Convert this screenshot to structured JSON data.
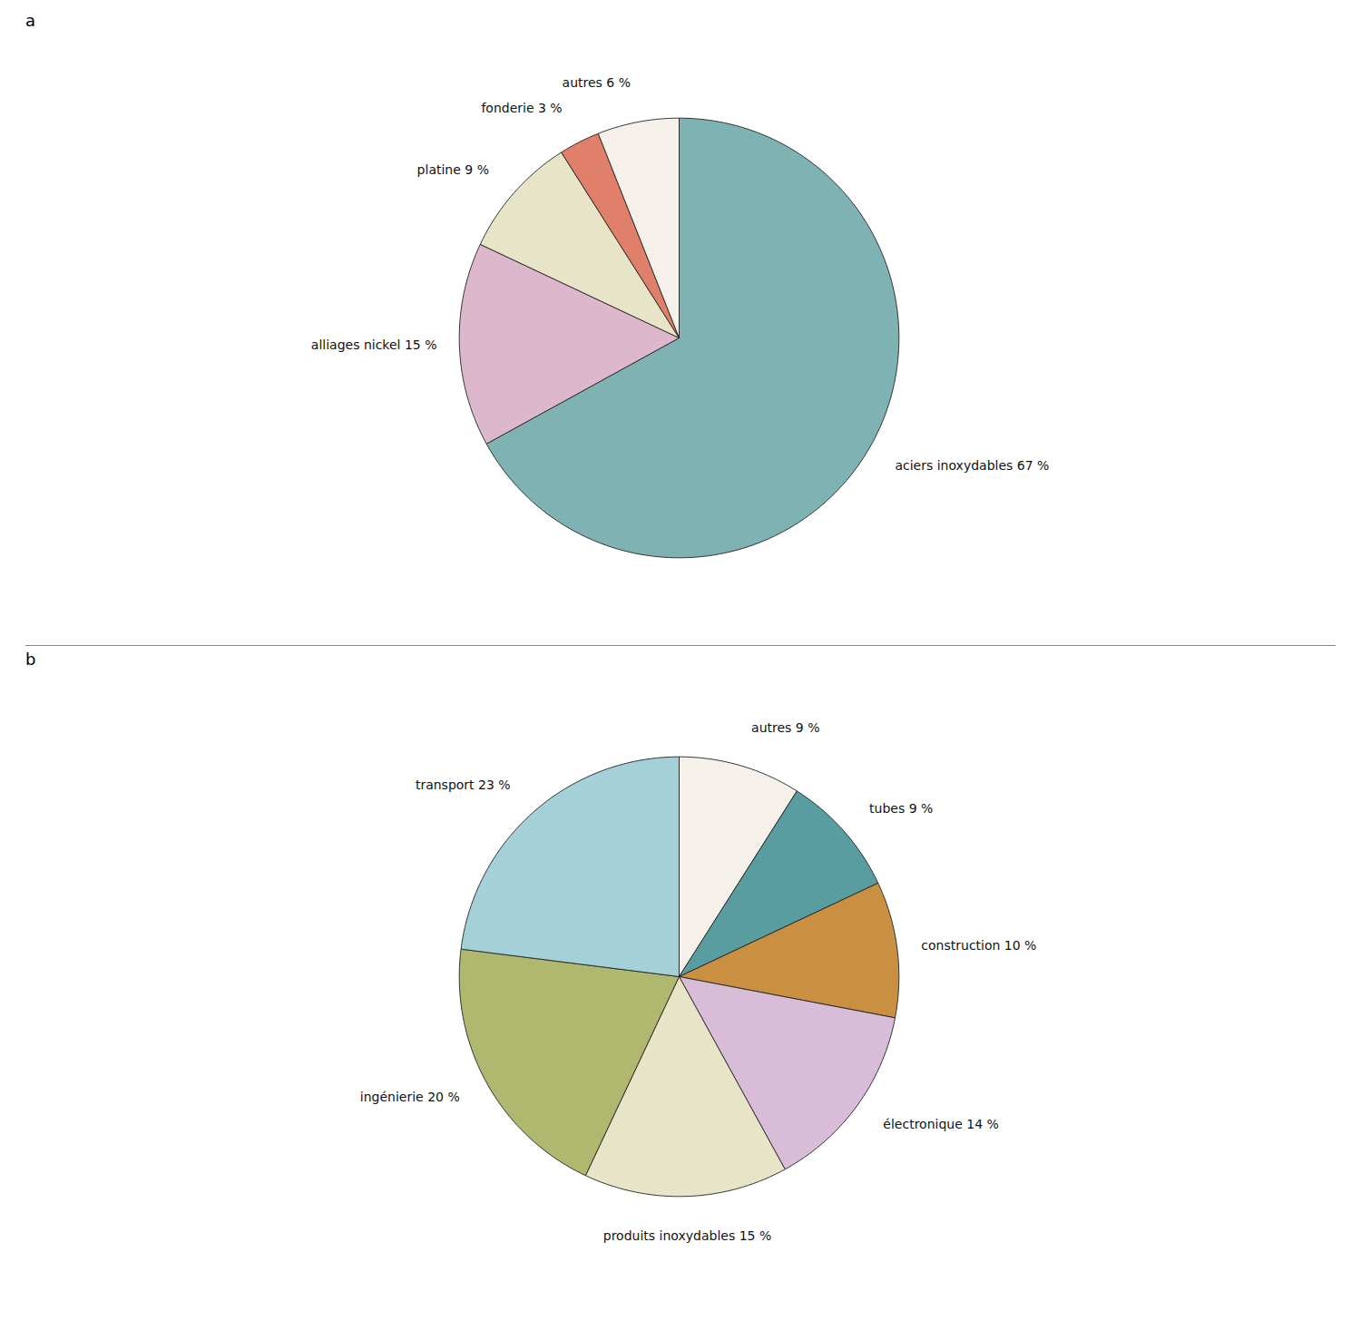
{
  "chart_data": [
    {
      "type": "pie",
      "title": "a",
      "categories": [
        "aciers inoxydables 67 %",
        "alliages nickel 15 %",
        "platine 9 %",
        "fonderie 3 %",
        "autres 6 %"
      ],
      "values": [
        67,
        15,
        9,
        3,
        6
      ],
      "colors": [
        "#7fb3b3",
        "#ddb8cc",
        "#e8e4c8",
        "#e0806a",
        "#f5f0ea"
      ],
      "data_labels": true
    },
    {
      "type": "pie",
      "title": "b",
      "categories": [
        "autres 9 %",
        "tubes 9 %",
        "construction 10 %",
        "électronique 14 %",
        "produits inoxydables 15 %",
        "ingénierie 20 %",
        "transport 23 %"
      ],
      "values": [
        9,
        9,
        10,
        14,
        15,
        20,
        23
      ],
      "colors": [
        "#f5f0ea",
        "#5a9da0",
        "#c89040",
        "#d8bcd8",
        "#e8e4c8",
        "#b0b870",
        "#a4d0d8"
      ],
      "data_labels": true
    }
  ]
}
